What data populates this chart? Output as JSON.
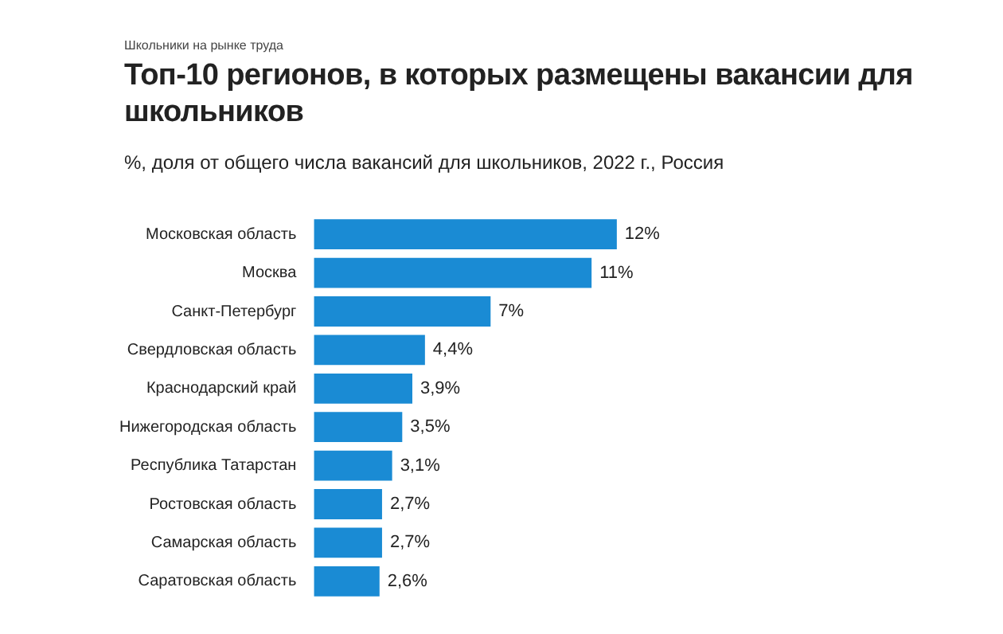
{
  "chart_data": {
    "type": "bar",
    "orientation": "horizontal",
    "title": "Топ-10 регионов, в которых размещены вакансии для школьников",
    "subtitle": "%, доля от общего числа вакансий для школьников, 2022 г., Россия",
    "annotations": [
      "Школьники на рынке труда"
    ],
    "categories": [
      "Московская область",
      "Москва",
      "Санкт-Петербург",
      "Свердловская область",
      "Краснодарский край",
      "Нижегородская область",
      "Республика Татарстан",
      "Ростовская область",
      "Самарская область",
      "Саратовская область"
    ],
    "values": [
      12,
      11,
      7,
      4.4,
      3.9,
      3.5,
      3.1,
      2.7,
      2.7,
      2.6
    ],
    "value_labels": [
      "12%",
      "11%",
      "7%",
      "4,4%",
      "3,9%",
      "3,5%",
      "3,1%",
      "2,7%",
      "2,7%",
      "2,6%"
    ],
    "color": "#1a8bd4",
    "grid": false,
    "legend": false,
    "tick_labels": "y"
  }
}
